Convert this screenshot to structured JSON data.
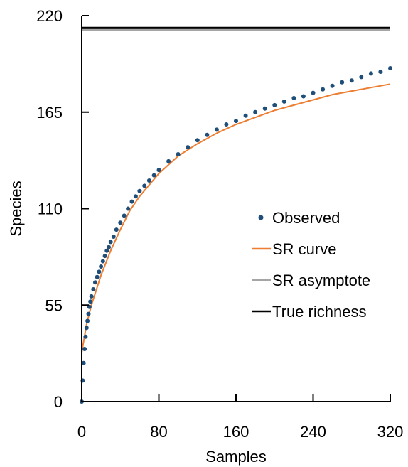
{
  "chart_data": {
    "type": "line",
    "xlabel": "Samples",
    "ylabel": "Species",
    "xlim": [
      0,
      320
    ],
    "ylim": [
      0,
      220
    ],
    "xticks": [
      0,
      80,
      160,
      240,
      320
    ],
    "yticks": [
      0,
      55,
      110,
      165,
      220
    ],
    "grid": false,
    "legend_position": "right",
    "series": [
      {
        "name": "Observed",
        "kind": "scatter",
        "color": "#1f4e79",
        "x": [
          0,
          1,
          2,
          3,
          4,
          5,
          6,
          7,
          8,
          9,
          10,
          12,
          14,
          16,
          18,
          20,
          22,
          24,
          26,
          28,
          30,
          33,
          36,
          40,
          44,
          48,
          52,
          56,
          60,
          65,
          70,
          75,
          80,
          90,
          100,
          110,
          120,
          130,
          140,
          150,
          160,
          170,
          180,
          190,
          200,
          210,
          220,
          230,
          240,
          250,
          260,
          270,
          280,
          290,
          300,
          310,
          320
        ],
        "y": [
          0,
          12,
          22,
          30,
          37,
          42,
          46,
          50,
          54,
          57,
          60,
          64,
          68,
          71,
          74,
          77,
          80,
          83,
          86,
          88,
          91,
          94,
          98,
          102,
          106,
          110,
          114,
          117,
          120,
          123,
          126,
          129,
          132,
          137,
          141,
          145,
          149,
          152,
          155,
          158,
          160,
          163,
          165,
          167,
          169,
          171,
          173,
          174,
          176,
          178,
          180,
          182,
          183,
          185,
          187,
          188,
          190
        ]
      },
      {
        "name": "SR curve",
        "kind": "line",
        "color": "#ed7d31",
        "x": [
          0,
          5,
          10,
          20,
          30,
          40,
          50,
          60,
          80,
          100,
          120,
          140,
          160,
          180,
          200,
          220,
          240,
          260,
          280,
          300,
          320
        ],
        "y": [
          28,
          44,
          55,
          72,
          86,
          98,
          109,
          117,
          130,
          140,
          147,
          153,
          158,
          162,
          166,
          169,
          172,
          175,
          177,
          179,
          181
        ]
      },
      {
        "name": "SR asymptote",
        "kind": "line",
        "color": "#a5a5a5",
        "x": [
          0,
          320
        ],
        "y": [
          212,
          212
        ]
      },
      {
        "name": "True richness",
        "kind": "line",
        "color": "#000000",
        "x": [
          0,
          320
        ],
        "y": [
          213,
          213
        ]
      }
    ]
  }
}
